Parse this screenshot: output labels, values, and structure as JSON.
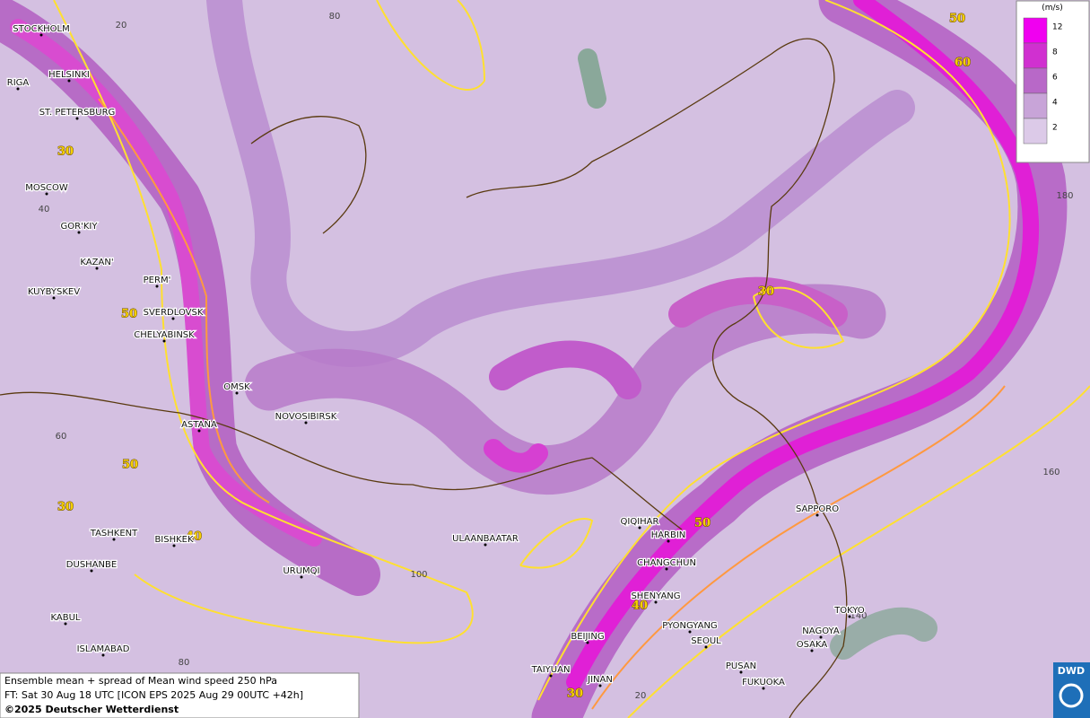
{
  "map": {
    "cities": [
      "STOCKHOLM",
      "HELSINKI",
      "RIGA",
      "ST. PETERSBURG",
      "MOSCOW",
      "GOR'KIY",
      "KAZAN'",
      "PERM'",
      "KUYBYSKEV",
      "SVERDLOVSK",
      "CHELYABINSK",
      "OMSK",
      "ASTANA",
      "NOVOSIBIRSK",
      "TASHKENT",
      "BISHKEK",
      "DUSHANBE",
      "URUMQI",
      "ULAANBAATAR",
      "QIQIHAR",
      "HARBIN",
      "CHANGCHUN",
      "SHENYANG",
      "PYONGYANG",
      "SEOUL",
      "BEIJING",
      "TAIYUAN",
      "JINAN",
      "PUSAN",
      "FUKUOKA",
      "SAPPORO",
      "TOKYO",
      "NAGOYA",
      "OSAKA",
      "KABUL",
      "ISLAMABAD"
    ],
    "contour_labels": [
      30,
      50,
      50,
      30,
      40,
      30,
      50,
      40,
      30,
      50,
      60
    ],
    "graticule_labels": [
      20,
      80,
      40,
      60,
      100,
      80,
      20,
      160,
      180,
      140
    ],
    "legend": {
      "unit": "(m/s)",
      "ticks": [
        12,
        8,
        6,
        4,
        2
      ]
    },
    "caption": {
      "line1": "Ensemble mean + spread of Mean wind speed 250 hPa",
      "line2": "FT: Sat 30 Aug 18 UTC [ICON EPS 2025 Aug 29 00UTC +42h]",
      "copyright": "©2025 Deutscher Wetterdienst"
    },
    "logo": "DWD"
  }
}
